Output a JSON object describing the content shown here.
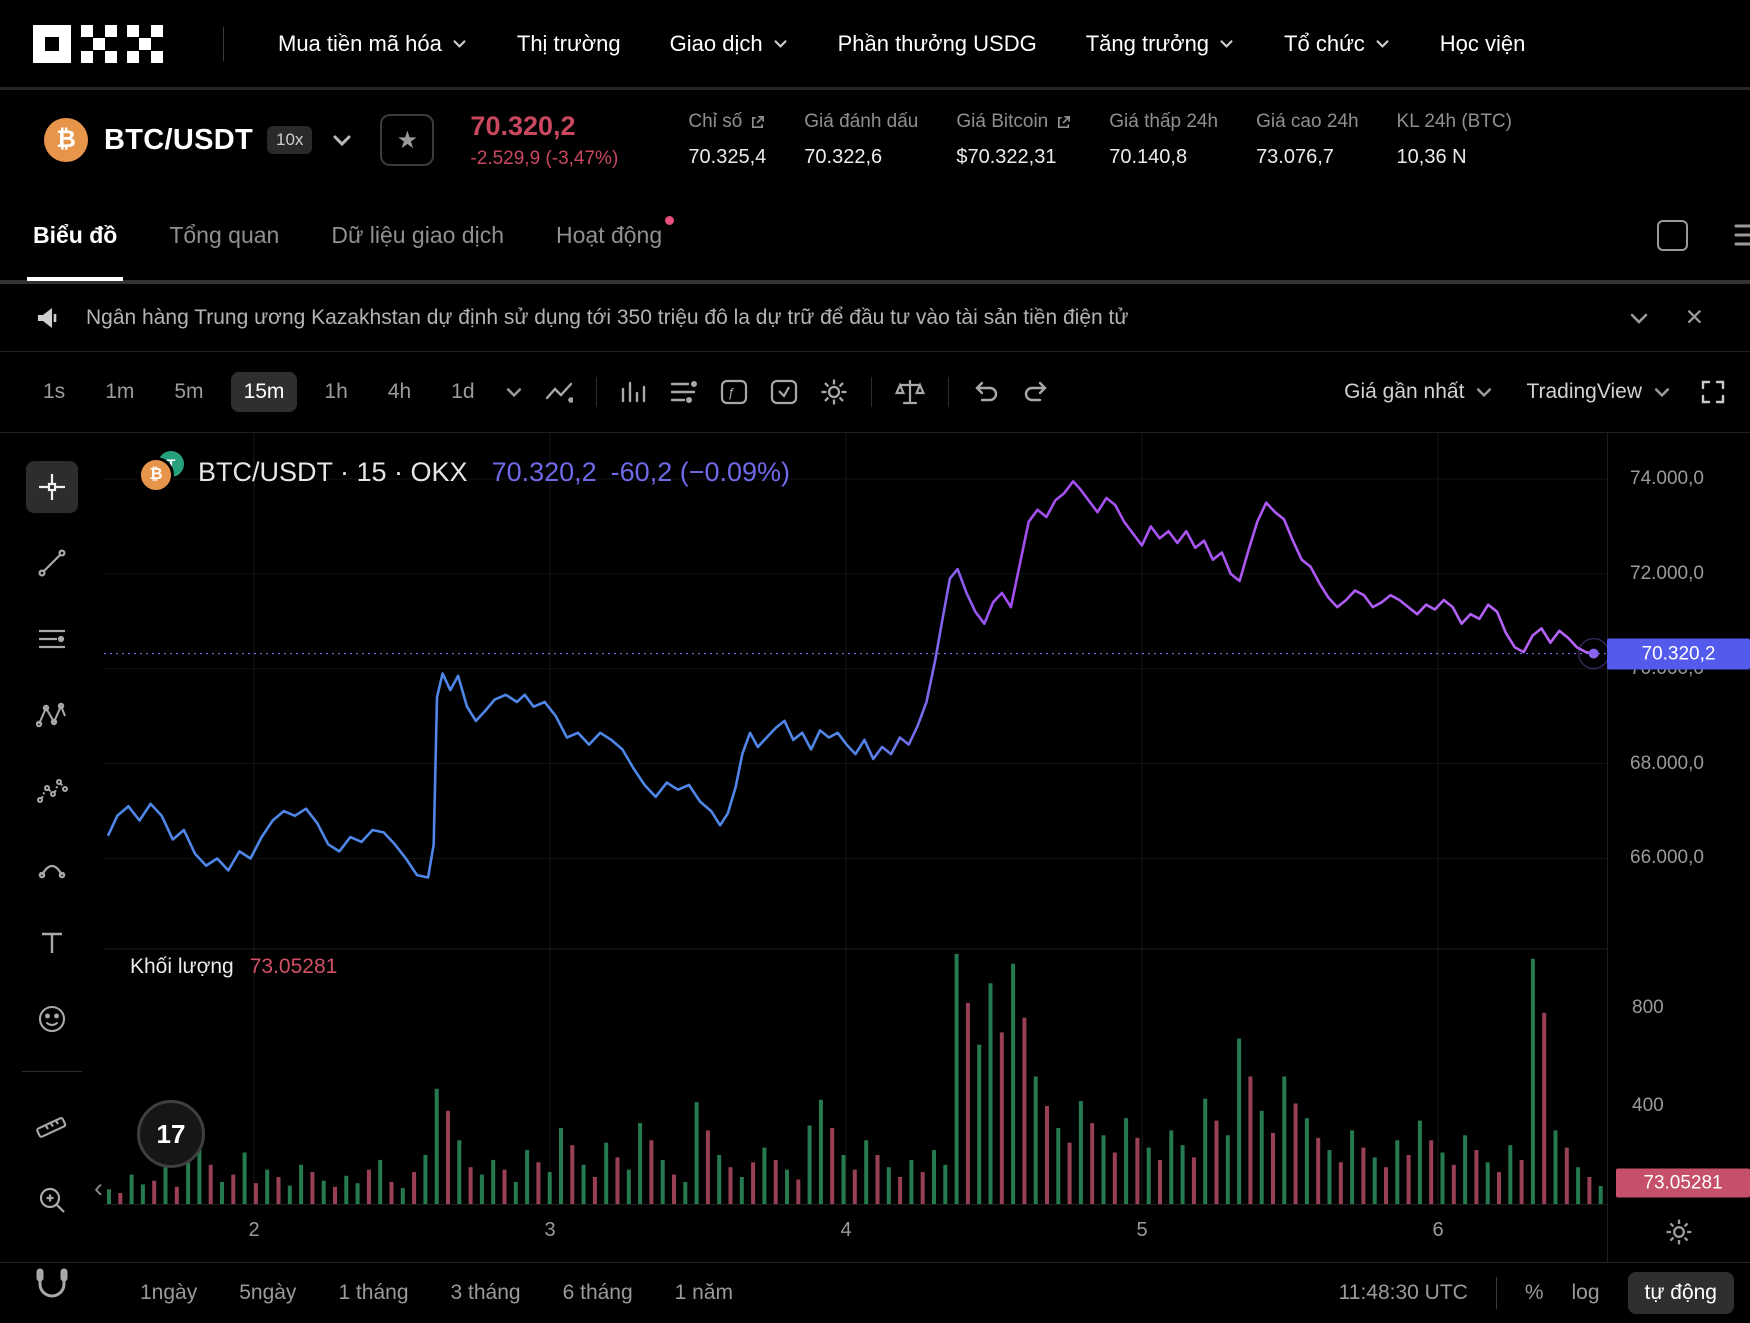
{
  "nav": {
    "logo": "OKX",
    "items": [
      {
        "label": "Mua tiền mã hóa",
        "chevron": true
      },
      {
        "label": "Thị trường",
        "chevron": false
      },
      {
        "label": "Giao dịch",
        "chevron": true
      },
      {
        "label": "Phần thưởng USDG",
        "chevron": false
      },
      {
        "label": "Tăng trưởng",
        "chevron": true
      },
      {
        "label": "Tổ chức",
        "chevron": true
      },
      {
        "label": "Học viện",
        "chevron": false
      }
    ]
  },
  "ticker": {
    "pair": "BTC/USDT",
    "leverage": "10x",
    "price": "70.320,2",
    "change": "-2.529,9 (-3,47%)",
    "stats": [
      {
        "label": "Chỉ số",
        "value": "70.325,4",
        "link": true
      },
      {
        "label": "Giá đánh dấu",
        "value": "70.322,6",
        "link": false
      },
      {
        "label": "Giá Bitcoin",
        "value": "$70.322,31",
        "link": true
      },
      {
        "label": "Giá thấp 24h",
        "value": "70.140,8",
        "link": false
      },
      {
        "label": "Giá cao 24h",
        "value": "73.076,7",
        "link": false
      },
      {
        "label": "KL 24h (BTC)",
        "value": "10,36 N",
        "link": false
      }
    ]
  },
  "tabs": {
    "items": [
      "Biểu đồ",
      "Tổng quan",
      "Dữ liệu giao dịch",
      "Hoạt động"
    ],
    "active_index": 0,
    "badge_index": 3
  },
  "announcement": {
    "text": "Ngân hàng Trung ương Kazakhstan dự định sử dụng tới 350 triệu đô la dự trữ để đầu tư vào tài sản tiền điện tử"
  },
  "toolbar": {
    "timeframes": [
      "1s",
      "1m",
      "5m",
      "15m",
      "1h",
      "4h",
      "1d"
    ],
    "selected": "15m",
    "price_mode": "Giá gần nhất",
    "vendor": "TradingView"
  },
  "legend": {
    "title": "BTC/USDT · 15 · OKX",
    "price": "70.320,2",
    "change": "-60,2 (−0.09%)"
  },
  "volume_legend": {
    "label": "Khối lượng",
    "value": "73.05281"
  },
  "axis": {
    "price_tag": "70.320,2",
    "volume_tag": "73.05281",
    "price_labels": [
      74000,
      72000,
      70000,
      68000,
      66000
    ],
    "volume_labels": [
      800,
      400
    ]
  },
  "bottom": {
    "ranges": [
      "1ngày",
      "5ngày",
      "1 tháng",
      "3 tháng",
      "6 tháng",
      "1 năm"
    ],
    "clock": "11:48:30 UTC",
    "percent": "%",
    "log": "log",
    "auto": "tự động"
  },
  "colors": {
    "down_red": "#c9485f",
    "accent_purple": "#6f6ae8",
    "line_blue": "#4f86e8",
    "line_purple": "#a24ef0",
    "price_tag_bg": "#545aec",
    "vol_tag_bg": "#c65069",
    "vol_up": "#2e9a63",
    "vol_down": "#c0506a",
    "badge_pink": "#e8517e"
  },
  "chart_data": {
    "type": "line",
    "title": "BTC/USDT · 15 · OKX",
    "interval": "15m",
    "last_price": 70320.2,
    "session_change": "-60,2 (−0.09%)",
    "x_tick_labels": [
      "2",
      "3",
      "4",
      "5",
      "6"
    ],
    "y_tick_labels": [
      74000,
      72000,
      70000,
      68000,
      66000
    ],
    "volume_ticks": [
      800,
      400
    ],
    "x_domain": [
      93,
      1447
    ],
    "price_unit": "kUSDT",
    "price_points": [
      [
        97,
        66.5
      ],
      [
        105,
        66.9
      ],
      [
        115,
        67.1
      ],
      [
        125,
        66.8
      ],
      [
        135,
        67.15
      ],
      [
        145,
        66.9
      ],
      [
        155,
        66.4
      ],
      [
        165,
        66.6
      ],
      [
        175,
        66.1
      ],
      [
        185,
        65.85
      ],
      [
        195,
        66.0
      ],
      [
        205,
        65.75
      ],
      [
        215,
        66.15
      ],
      [
        225,
        66.0
      ],
      [
        235,
        66.45
      ],
      [
        245,
        66.8
      ],
      [
        255,
        67.0
      ],
      [
        265,
        66.9
      ],
      [
        275,
        67.05
      ],
      [
        285,
        66.75
      ],
      [
        295,
        66.3
      ],
      [
        305,
        66.15
      ],
      [
        315,
        66.45
      ],
      [
        325,
        66.35
      ],
      [
        335,
        66.6
      ],
      [
        345,
        66.55
      ],
      [
        355,
        66.3
      ],
      [
        365,
        66.0
      ],
      [
        375,
        65.65
      ],
      [
        385,
        65.6
      ],
      [
        390,
        66.3
      ],
      [
        393,
        69.4
      ],
      [
        398,
        69.9
      ],
      [
        405,
        69.55
      ],
      [
        412,
        69.85
      ],
      [
        420,
        69.2
      ],
      [
        428,
        68.9
      ],
      [
        436,
        69.1
      ],
      [
        445,
        69.35
      ],
      [
        455,
        69.45
      ],
      [
        465,
        69.3
      ],
      [
        472,
        69.45
      ],
      [
        480,
        69.2
      ],
      [
        490,
        69.3
      ],
      [
        500,
        69.0
      ],
      [
        510,
        68.55
      ],
      [
        520,
        68.65
      ],
      [
        530,
        68.4
      ],
      [
        540,
        68.65
      ],
      [
        550,
        68.5
      ],
      [
        560,
        68.3
      ],
      [
        570,
        67.9
      ],
      [
        580,
        67.55
      ],
      [
        590,
        67.3
      ],
      [
        600,
        67.6
      ],
      [
        610,
        67.45
      ],
      [
        620,
        67.55
      ],
      [
        630,
        67.2
      ],
      [
        640,
        67.0
      ],
      [
        648,
        66.7
      ],
      [
        655,
        66.95
      ],
      [
        662,
        67.5
      ],
      [
        668,
        68.2
      ],
      [
        675,
        68.65
      ],
      [
        682,
        68.35
      ],
      [
        690,
        68.55
      ],
      [
        698,
        68.75
      ],
      [
        706,
        68.9
      ],
      [
        714,
        68.5
      ],
      [
        722,
        68.65
      ],
      [
        730,
        68.3
      ],
      [
        738,
        68.7
      ],
      [
        746,
        68.55
      ],
      [
        754,
        68.65
      ],
      [
        762,
        68.4
      ],
      [
        770,
        68.2
      ],
      [
        778,
        68.5
      ],
      [
        786,
        68.1
      ],
      [
        794,
        68.35
      ],
      [
        802,
        68.2
      ],
      [
        810,
        68.55
      ],
      [
        818,
        68.4
      ],
      [
        826,
        68.8
      ],
      [
        834,
        69.3
      ],
      [
        842,
        70.2
      ],
      [
        848,
        71.0
      ],
      [
        855,
        71.9
      ],
      [
        862,
        72.1
      ],
      [
        870,
        71.6
      ],
      [
        878,
        71.2
      ],
      [
        886,
        70.95
      ],
      [
        894,
        71.4
      ],
      [
        902,
        71.6
      ],
      [
        910,
        71.3
      ],
      [
        918,
        72.2
      ],
      [
        926,
        73.1
      ],
      [
        934,
        73.35
      ],
      [
        942,
        73.2
      ],
      [
        950,
        73.55
      ],
      [
        958,
        73.7
      ],
      [
        966,
        73.95
      ],
      [
        972,
        73.8
      ],
      [
        980,
        73.55
      ],
      [
        988,
        73.3
      ],
      [
        996,
        73.6
      ],
      [
        1004,
        73.45
      ],
      [
        1012,
        73.1
      ],
      [
        1020,
        72.85
      ],
      [
        1028,
        72.6
      ],
      [
        1036,
        73.0
      ],
      [
        1044,
        72.75
      ],
      [
        1052,
        72.9
      ],
      [
        1060,
        72.65
      ],
      [
        1068,
        72.9
      ],
      [
        1076,
        72.55
      ],
      [
        1084,
        72.7
      ],
      [
        1092,
        72.3
      ],
      [
        1100,
        72.45
      ],
      [
        1108,
        72.0
      ],
      [
        1116,
        71.85
      ],
      [
        1124,
        72.5
      ],
      [
        1132,
        73.1
      ],
      [
        1140,
        73.5
      ],
      [
        1148,
        73.3
      ],
      [
        1156,
        73.15
      ],
      [
        1164,
        72.7
      ],
      [
        1172,
        72.3
      ],
      [
        1180,
        72.15
      ],
      [
        1188,
        71.8
      ],
      [
        1196,
        71.5
      ],
      [
        1204,
        71.3
      ],
      [
        1212,
        71.45
      ],
      [
        1220,
        71.65
      ],
      [
        1228,
        71.55
      ],
      [
        1236,
        71.3
      ],
      [
        1244,
        71.4
      ],
      [
        1252,
        71.55
      ],
      [
        1260,
        71.45
      ],
      [
        1268,
        71.3
      ],
      [
        1276,
        71.15
      ],
      [
        1284,
        71.35
      ],
      [
        1292,
        71.25
      ],
      [
        1300,
        71.45
      ],
      [
        1308,
        71.3
      ],
      [
        1316,
        70.95
      ],
      [
        1324,
        71.15
      ],
      [
        1332,
        71.05
      ],
      [
        1340,
        71.35
      ],
      [
        1348,
        71.2
      ],
      [
        1356,
        70.75
      ],
      [
        1364,
        70.45
      ],
      [
        1372,
        70.35
      ],
      [
        1380,
        70.7
      ],
      [
        1388,
        70.85
      ],
      [
        1396,
        70.55
      ],
      [
        1404,
        70.8
      ],
      [
        1412,
        70.65
      ],
      [
        1420,
        70.45
      ],
      [
        1428,
        70.35
      ],
      [
        1435,
        70.3202
      ]
    ],
    "volume_current": 73.05281,
    "volume_bars": [
      60,
      -45,
      120,
      80,
      -95,
      150,
      -70,
      180,
      230,
      -160,
      90,
      -120,
      210,
      -85,
      140,
      -110,
      75,
      160,
      -130,
      95,
      -70,
      115,
      85,
      -140,
      180,
      -90,
      65,
      -130,
      200,
      470,
      -380,
      260,
      -150,
      120,
      180,
      -140,
      90,
      220,
      -170,
      130,
      310,
      -240,
      160,
      -110,
      250,
      -190,
      140,
      330,
      -260,
      180,
      -120,
      90,
      415,
      -300,
      200,
      -150,
      110,
      -170,
      230,
      -180,
      140,
      -100,
      320,
      425,
      -310,
      200,
      -140,
      260,
      -200,
      150,
      -110,
      180,
      -130,
      220,
      160,
      1020,
      -820,
      650,
      900,
      -700,
      980,
      -760,
      520,
      -400,
      310,
      -250,
      420,
      -330,
      280,
      -210,
      350,
      -270,
      230,
      -180,
      300,
      240,
      -190,
      430,
      -340,
      280,
      675,
      -520,
      380,
      -290,
      520,
      -410,
      350,
      -270,
      220,
      -170,
      300,
      -230,
      190,
      -150,
      260,
      -200,
      340,
      -260,
      210,
      -160,
      280,
      -220,
      170,
      -130,
      240,
      -180,
      1000,
      -780,
      300,
      -230,
      150,
      -110,
      73
    ]
  },
  "drawing_tools": [
    "crosshair",
    "trend-line",
    "parallel-lines",
    "xabcd-pattern",
    "elliott-wave",
    "arc-tool",
    "text-tool",
    "emoji-tool",
    "ruler",
    "zoom-in"
  ]
}
